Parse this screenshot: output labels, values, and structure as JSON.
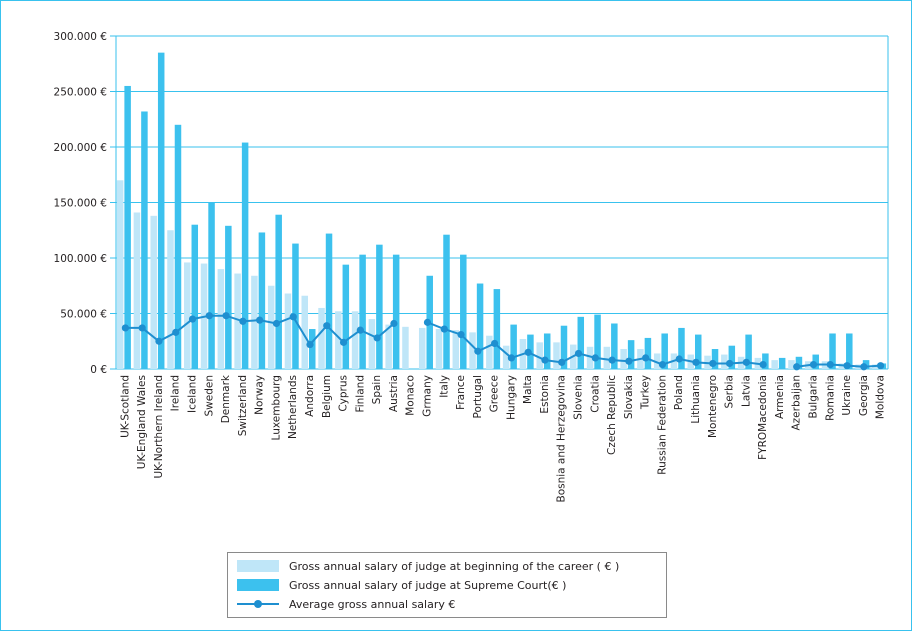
{
  "chart_data": {
    "type": "bar",
    "categories": [
      "UK-Scotland",
      "UK-England Wales",
      "UK-Northern Ireland",
      "Ireland",
      "Iceland",
      "Sweden",
      "Denmark",
      "Switzerland",
      "Norway",
      "Luxembourg",
      "Netherlands",
      "Andorra",
      "Belgium",
      "Cyprus",
      "Finland",
      "Spain",
      "Austria",
      "Monaco",
      "Grmany",
      "Italy",
      "France",
      "Portugal",
      "Greece",
      "Hungary",
      "Malta",
      "Estonia",
      "Bosnia and Herzegovina",
      "Slovenia",
      "Croatia",
      "Czech Republic",
      "Slovakia",
      "Turkey",
      "Russian Federation",
      "Poland",
      "Lithuania",
      "Montenegro",
      "Serbia",
      "Latvia",
      "FYROMacedonia",
      "Armenia",
      "Azerbaijan",
      "Bulgaria",
      "Romania",
      "Ukraine",
      "Georgia",
      "Moldova"
    ],
    "series": [
      {
        "name": "Gross annual salary of  judge at beginning of the career ( € )",
        "kind": "bar",
        "color": "#bfe6f8",
        "values": [
          170000,
          141000,
          138000,
          125000,
          96000,
          95000,
          90000,
          86000,
          84000,
          75000,
          68000,
          66000,
          55000,
          52000,
          52000,
          45000,
          40000,
          38000,
          37000,
          36000,
          35000,
          33000,
          30000,
          21000,
          27000,
          24000,
          24000,
          22000,
          20000,
          20000,
          18000,
          18000,
          14000,
          14000,
          13000,
          12000,
          13000,
          11000,
          10000,
          8000,
          8000,
          7000,
          7000,
          5000,
          4000,
          4000
        ]
      },
      {
        "name": "Gross annual salary of  judge at Supreme Court(€  )",
        "kind": "bar",
        "color": "#3cc1ee",
        "values": [
          255000,
          232000,
          285000,
          220000,
          130000,
          150000,
          129000,
          204000,
          123000,
          139000,
          113000,
          36000,
          122000,
          94000,
          103000,
          112000,
          103000,
          null,
          84000,
          121000,
          103000,
          77000,
          72000,
          40000,
          31000,
          32000,
          39000,
          47000,
          49000,
          41000,
          26000,
          28000,
          32000,
          37000,
          31000,
          18000,
          21000,
          31000,
          14000,
          10000,
          11000,
          13000,
          32000,
          32000,
          8000,
          5000
        ]
      },
      {
        "name": "Average gross annual salary €",
        "kind": "line",
        "color": "#1e8fd0",
        "values": [
          37000,
          37000,
          25000,
          33000,
          45000,
          48000,
          48000,
          43000,
          44000,
          41000,
          47000,
          22000,
          39000,
          24000,
          35000,
          28000,
          41000,
          null,
          42000,
          36000,
          31000,
          16000,
          23000,
          10000,
          15000,
          8000,
          6000,
          14000,
          10000,
          8000,
          7000,
          10000,
          4000,
          9000,
          6000,
          5000,
          5000,
          6000,
          4000,
          null,
          2000,
          4000,
          4000,
          3000,
          2000,
          3000
        ]
      }
    ],
    "yticks": [
      "0 €",
      "50.000 €",
      "100.000 €",
      "150.000 €",
      "200.000 €",
      "250.000 €",
      "300.000 €"
    ],
    "ylim": [
      0,
      300000
    ],
    "grid": true,
    "legend": "bottom"
  }
}
